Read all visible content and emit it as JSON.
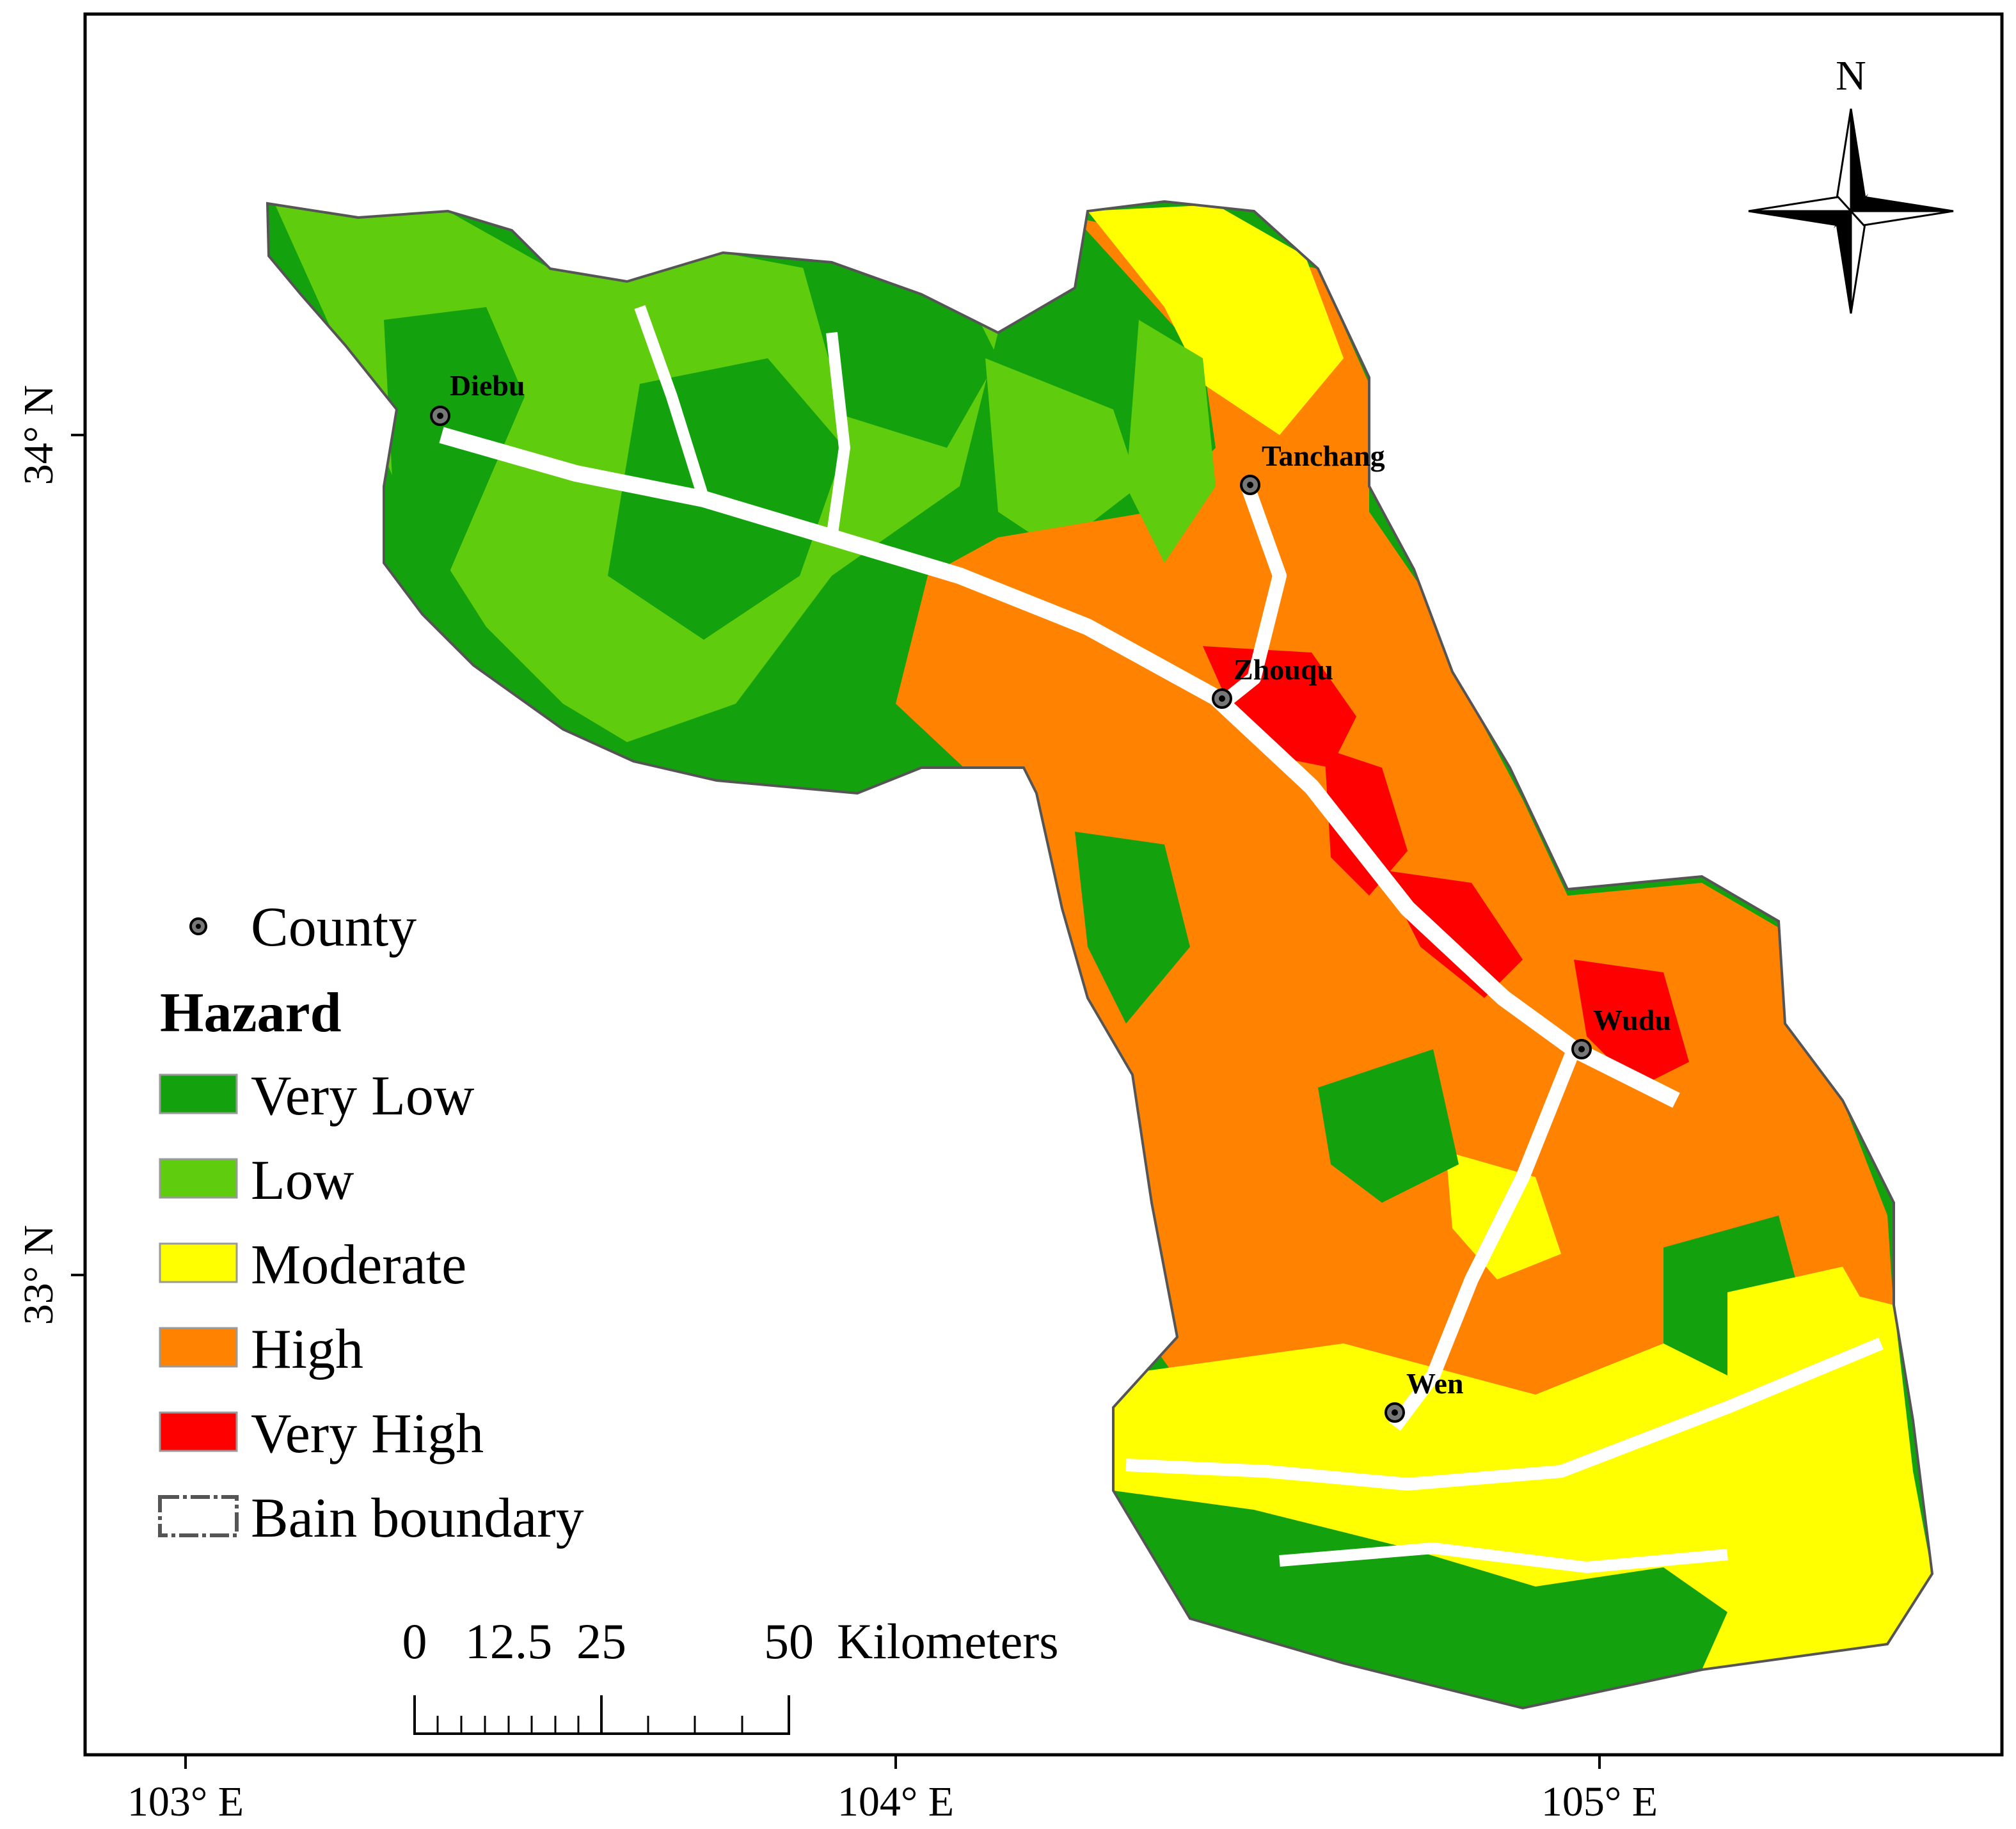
{
  "map": {
    "axes": {
      "x_ticks": [
        "103° E",
        "104° E",
        "105° E"
      ],
      "y_ticks": [
        "34° N",
        "33° N"
      ]
    },
    "counties": [
      "Diebu",
      "Tanchang",
      "Zhouqu",
      "Wudu",
      "Wen"
    ],
    "north_label": "N",
    "legend": {
      "county_label": "County",
      "title": "Hazard",
      "classes": [
        {
          "label": "Very Low",
          "color": "#13a10e"
        },
        {
          "label": "Low",
          "color": "#5fcc0d"
        },
        {
          "label": "Moderate",
          "color": "#ffff00"
        },
        {
          "label": "High",
          "color": "#ff8200"
        },
        {
          "label": "Very High",
          "color": "#ff0000"
        }
      ],
      "boundary_label": "Bain boundary"
    },
    "scale_bar": {
      "labels": [
        "0",
        "12.5",
        "25",
        "50"
      ],
      "unit": "Kilometers"
    }
  }
}
